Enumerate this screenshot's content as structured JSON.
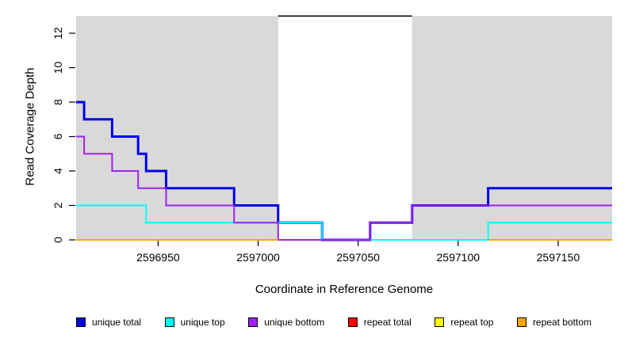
{
  "titles": {
    "x_axis": "Coordinate in Reference Genome",
    "y_axis": "Read Coverage Depth"
  },
  "chart_data": {
    "type": "line",
    "subtype": "step",
    "title": "",
    "xlabel": "Coordinate in Reference Genome",
    "ylabel": "Read Coverage Depth",
    "xlim": [
      2596909,
      2597177
    ],
    "ylim": [
      0,
      13
    ],
    "x_ticks": [
      2596950,
      2597000,
      2597050,
      2597100,
      2597150
    ],
    "y_ticks": [
      0,
      2,
      4,
      6,
      8,
      10,
      12
    ],
    "grid": false,
    "legend_position": "bottom",
    "shaded_regions": [
      {
        "name": "repeat-region-left",
        "x0": 2596909,
        "x1": 2597010,
        "y0": 0,
        "y1": 13,
        "color": "#d9d9d9"
      },
      {
        "name": "repeat-region-right",
        "x0": 2597077,
        "x1": 2597177,
        "y0": 0,
        "y1": 13,
        "color": "#d9d9d9"
      }
    ],
    "gap_top_line": {
      "x0": 2597010,
      "x1": 2597077,
      "y": 13,
      "color": "#000000"
    },
    "series": [
      {
        "name": "unique total",
        "color": "#0000EE",
        "line_width": 3,
        "segments": [
          [
            [
              2596909,
              8
            ],
            [
              2596913,
              7
            ],
            [
              2596927,
              6
            ],
            [
              2596940,
              5
            ],
            [
              2596944,
              4
            ],
            [
              2596954,
              3
            ],
            [
              2596988,
              2
            ],
            [
              2597010,
              1
            ],
            [
              2597032,
              0
            ],
            [
              2597056,
              1
            ],
            [
              2597077,
              2
            ],
            [
              2597115,
              3
            ],
            [
              2597177,
              3
            ]
          ]
        ]
      },
      {
        "name": "unique top",
        "color": "#00FFFF",
        "line_width": 2,
        "segments": [
          [
            [
              2596909,
              2
            ],
            [
              2596944,
              1
            ],
            [
              2597032,
              0
            ],
            [
              2597115,
              1
            ],
            [
              2597177,
              1
            ]
          ]
        ]
      },
      {
        "name": "unique bottom",
        "color": "#A020F0",
        "line_width": 2,
        "segments": [
          [
            [
              2596909,
              6
            ],
            [
              2596913,
              5
            ],
            [
              2596927,
              4
            ],
            [
              2596940,
              3
            ],
            [
              2596954,
              2
            ],
            [
              2596988,
              1
            ],
            [
              2597010,
              0
            ],
            [
              2597056,
              1
            ],
            [
              2597077,
              2
            ],
            [
              2597177,
              2
            ]
          ]
        ]
      },
      {
        "name": "repeat total",
        "color": "#FF0000",
        "line_width": 2,
        "segments": [
          [
            [
              2596909,
              0
            ],
            [
              2597010,
              0
            ]
          ],
          [
            [
              2597115,
              0
            ],
            [
              2597177,
              0
            ]
          ]
        ]
      },
      {
        "name": "repeat top",
        "color": "#FFFF00",
        "line_width": 2,
        "segments": [
          [
            [
              2596909,
              0
            ],
            [
              2597010,
              0
            ]
          ],
          [
            [
              2597115,
              0
            ],
            [
              2597177,
              0
            ]
          ]
        ]
      },
      {
        "name": "repeat bottom",
        "color": "#FFA500",
        "line_width": 2,
        "segments": [
          [
            [
              2596909,
              0
            ],
            [
              2597010,
              0
            ]
          ],
          [
            [
              2597115,
              0
            ],
            [
              2597177,
              0
            ]
          ]
        ]
      }
    ],
    "legend": [
      {
        "label": "unique total",
        "color": "#0000DD"
      },
      {
        "label": "unique top",
        "color": "#00FFFF"
      },
      {
        "label": "unique bottom",
        "color": "#A020F0"
      },
      {
        "label": "repeat total",
        "color": "#FF0000"
      },
      {
        "label": "repeat top",
        "color": "#FFFF00"
      },
      {
        "label": "repeat bottom",
        "color": "#FFA500"
      }
    ],
    "axis_color": "#000000",
    "tick_label_font_px": 14
  }
}
